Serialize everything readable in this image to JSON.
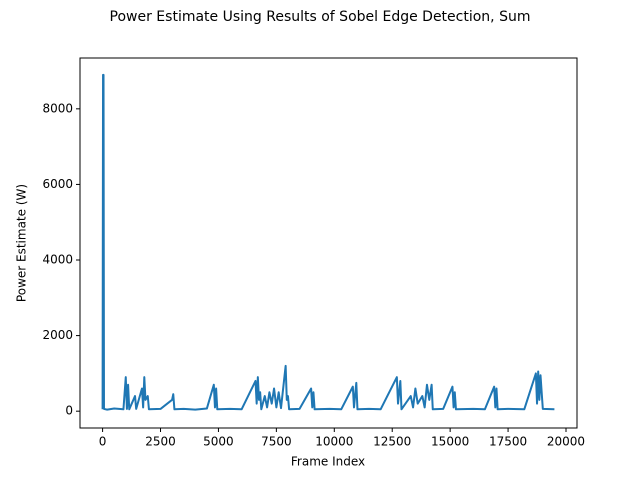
{
  "chart_data": {
    "type": "line",
    "title": "Power Estimate Using Results of Sobel Edge Detection, Sum",
    "xlabel": "Frame Index",
    "ylabel": "Power Estimate (W)",
    "x": [
      0,
      20,
      40,
      60,
      200,
      500,
      900,
      1000,
      1050,
      1100,
      1150,
      1400,
      1450,
      1700,
      1750,
      1800,
      1850,
      1950,
      2000,
      2500,
      3000,
      3050,
      3100,
      3500,
      4000,
      4500,
      4800,
      4850,
      4900,
      4950,
      5500,
      6000,
      6600,
      6650,
      6700,
      6750,
      6800,
      6850,
      7000,
      7100,
      7200,
      7300,
      7400,
      7500,
      7600,
      7700,
      7900,
      7950,
      8000,
      8050,
      8500,
      9000,
      9050,
      9100,
      9150,
      9800,
      10300,
      10800,
      10850,
      10950,
      11000,
      11500,
      12000,
      12700,
      12750,
      12850,
      12900,
      13300,
      13400,
      13500,
      13600,
      13800,
      13900,
      14000,
      14100,
      14200,
      14250,
      14700,
      15100,
      15150,
      15200,
      15250,
      16000,
      16500,
      16900,
      16950,
      17000,
      17050,
      17500,
      18200,
      18700,
      18750,
      18800,
      18850,
      18900,
      18950,
      19000,
      19500
    ],
    "series": [
      {
        "name": "Power Estimate",
        "color": "#1f77b4",
        "values": [
          50,
          8900,
          8900,
          60,
          40,
          70,
          50,
          900,
          60,
          700,
          50,
          400,
          60,
          600,
          100,
          900,
          300,
          400,
          50,
          60,
          300,
          450,
          50,
          60,
          40,
          70,
          700,
          100,
          600,
          50,
          60,
          50,
          800,
          200,
          900,
          300,
          500,
          50,
          400,
          100,
          500,
          200,
          600,
          100,
          500,
          80,
          1200,
          300,
          400,
          50,
          60,
          600,
          100,
          500,
          50,
          60,
          50,
          650,
          100,
          750,
          50,
          60,
          50,
          900,
          200,
          800,
          50,
          400,
          100,
          600,
          200,
          400,
          100,
          700,
          300,
          700,
          50,
          60,
          650,
          100,
          500,
          50,
          60,
          50,
          650,
          100,
          600,
          50,
          60,
          50,
          1000,
          200,
          1050,
          300,
          950,
          500,
          60,
          50
        ]
      }
    ],
    "xlim": [
      -975,
      20475
    ],
    "ylim": [
      -445,
      9345
    ],
    "xticks": [
      0,
      2500,
      5000,
      7500,
      10000,
      12500,
      15000,
      17500,
      20000
    ],
    "yticks": [
      0,
      2000,
      4000,
      6000,
      8000
    ]
  }
}
